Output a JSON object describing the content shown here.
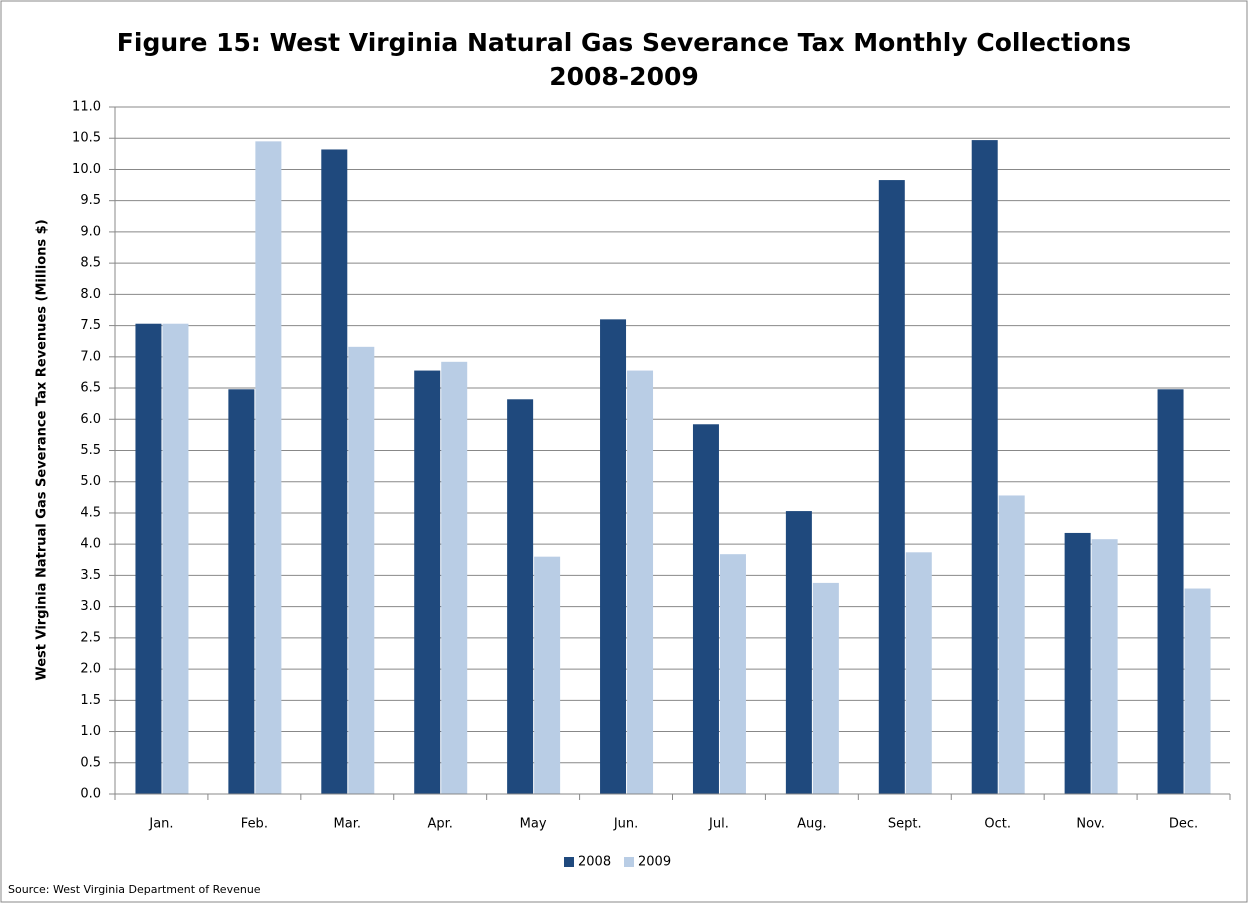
{
  "chart_data": {
    "type": "bar",
    "title": "Figure 15: West Virginia Natural Gas Severance Tax Monthly Collections",
    "subtitle": "2008-2009",
    "y_label": "West Virginia Natrual Gas Severance Tax  Revenues (Millions $)",
    "source": "Source: West Virginia Department of Revenue",
    "categories": [
      "Jan.",
      "Feb.",
      "Mar.",
      "Apr.",
      "May",
      "Jun.",
      "Jul.",
      "Aug.",
      "Sept.",
      "Oct.",
      "Nov.",
      "Dec."
    ],
    "series": [
      {
        "name": "2008",
        "color": "#1f497d",
        "values": [
          7.53,
          6.48,
          10.32,
          6.78,
          6.32,
          7.6,
          5.92,
          4.53,
          9.83,
          10.47,
          4.18,
          6.48
        ]
      },
      {
        "name": "2009",
        "color": "#b9cde5",
        "values": [
          7.53,
          10.45,
          7.16,
          6.92,
          3.8,
          6.78,
          3.84,
          3.38,
          3.87,
          4.78,
          4.08,
          3.29
        ]
      }
    ],
    "ylim": [
      0,
      11
    ],
    "yticks": [
      {
        "value": 0,
        "label": "0.0"
      },
      0.5,
      {
        "value": 1,
        "label": "1.0"
      },
      1.5,
      {
        "value": 2,
        "label": "2.0"
      },
      2.5,
      {
        "value": 3,
        "label": "3.0"
      },
      3.5,
      {
        "value": 4,
        "label": "4.0"
      },
      4.5,
      {
        "value": 5,
        "label": "5.0"
      },
      5.5,
      {
        "value": 6,
        "label": "6.0"
      },
      6.5,
      {
        "value": 7,
        "label": "7.0"
      },
      7.5,
      {
        "value": 8,
        "label": "8.0"
      },
      8.5,
      {
        "value": 9,
        "label": "9.0"
      },
      9.5,
      {
        "value": 10,
        "label": "10.0"
      },
      10.5,
      {
        "value": 11,
        "label": "11.0"
      }
    ],
    "grid": true,
    "legend": "bottom"
  }
}
